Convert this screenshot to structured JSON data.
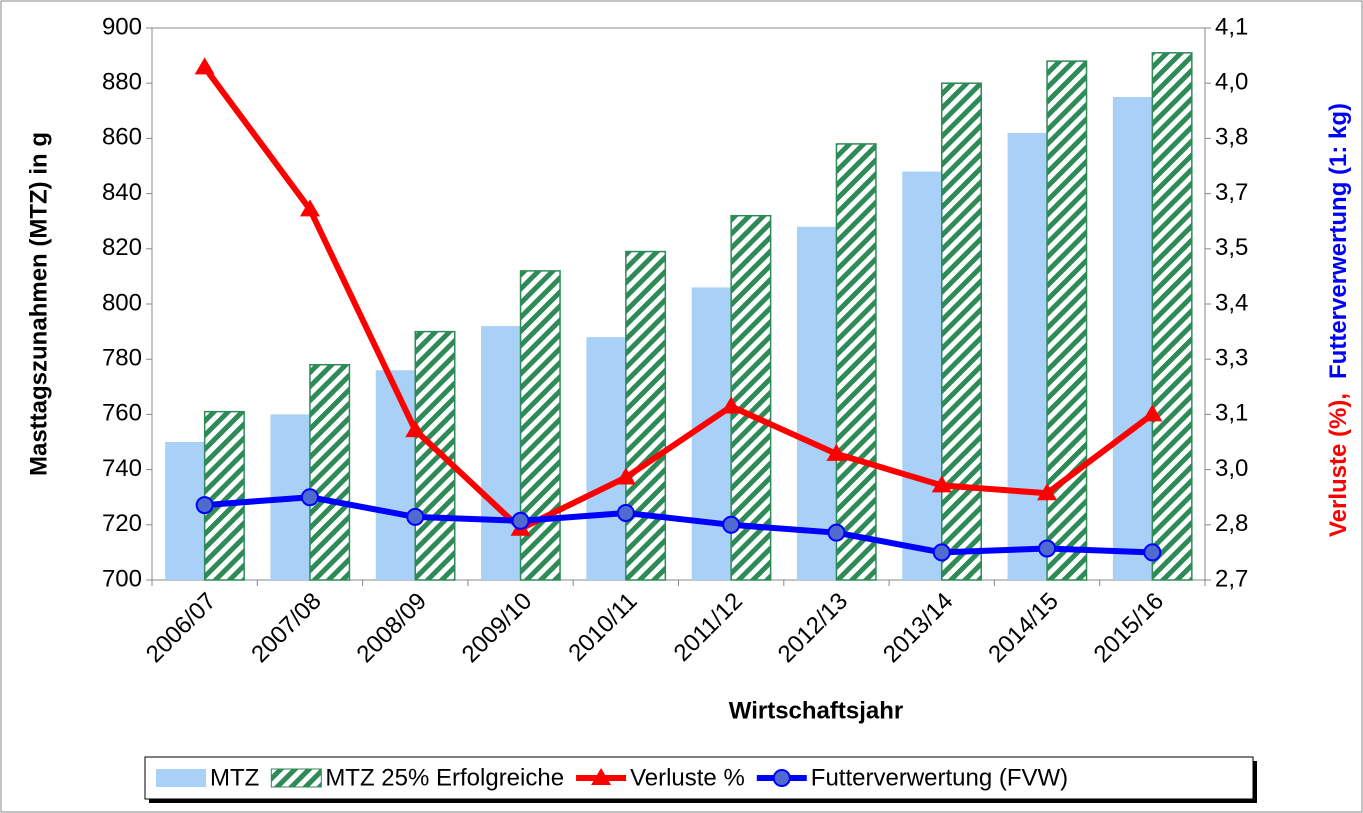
{
  "chart_data": {
    "type": "bar",
    "x_label": "Wirtschaftsjahr",
    "y_label": "Masttagszunahmen  (MTZ)  in g",
    "y2_label_parts": [
      {
        "text": "Verluste   (%),",
        "color": "#ff0000"
      },
      {
        "text": "Futterverwertung (1: kg)",
        "color": "#0000ff"
      }
    ],
    "categories": [
      "2006/07",
      "2007/08",
      "2008/09",
      "2009/10",
      "2010/11",
      "2011/12",
      "2012/13",
      "2013/14",
      "2014/15",
      "2015/16"
    ],
    "series": [
      {
        "name": "MTZ",
        "type": "bar",
        "color": "#a9d1f7",
        "values": [
          750,
          760,
          776,
          792,
          788,
          806,
          828,
          848,
          862,
          875
        ]
      },
      {
        "name": "MTZ 25% Erfolgreiche",
        "type": "bar",
        "color": "#2e8b57",
        "pattern": "hatch",
        "values": [
          761,
          778,
          790,
          812,
          819,
          832,
          858,
          880,
          888,
          891
        ]
      },
      {
        "name": "Verluste %",
        "type": "line",
        "axis": "y2",
        "color": "#ff0000",
        "marker": "triangle",
        "values": [
          4.0,
          3.64,
          3.08,
          2.83,
          2.96,
          3.14,
          3.02,
          2.94,
          2.92,
          3.12
        ]
      },
      {
        "name": "Futterverwertung (FVW)",
        "type": "line",
        "axis": "y2",
        "color": "#0000ff",
        "marker": "circle",
        "values": [
          2.89,
          2.91,
          2.86,
          2.85,
          2.87,
          2.84,
          2.82,
          2.77,
          2.78,
          2.77
        ]
      }
    ],
    "ylim": [
      700,
      900
    ],
    "yticks": [
      700,
      720,
      740,
      760,
      780,
      800,
      820,
      840,
      860,
      880,
      900
    ],
    "y2lim": [
      2.7,
      4.1
    ],
    "y2ticks": [
      {
        "value": 2.7,
        "label": "2,7"
      },
      {
        "value": 2.84,
        "label": "2,8"
      },
      {
        "value": 2.98,
        "label": "3,0"
      },
      {
        "value": 3.12,
        "label": "3,1"
      },
      {
        "value": 3.26,
        "label": "3,3"
      },
      {
        "value": 3.4,
        "label": "3,4"
      },
      {
        "value": 3.54,
        "label": "3,5"
      },
      {
        "value": 3.68,
        "label": "3,7"
      },
      {
        "value": 3.82,
        "label": "3,8"
      },
      {
        "value": 3.96,
        "label": "4,0"
      },
      {
        "value": 4.1,
        "label": "4,1"
      }
    ],
    "legend": "bottom"
  }
}
